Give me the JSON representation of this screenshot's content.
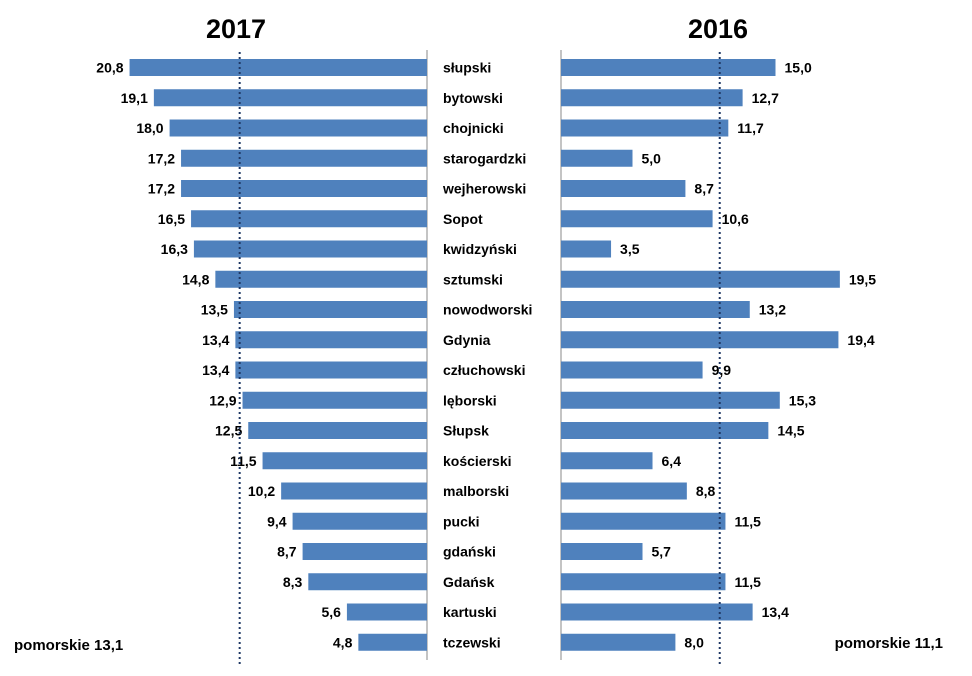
{
  "chart_data": {
    "type": "bar",
    "orientation": "horizontal-butterfly",
    "categories": [
      "słupski",
      "bytowski",
      "chojnicki",
      "starogardzki",
      "wejherowski",
      "Sopot",
      "kwidzyński",
      "sztumski",
      "nowodworski",
      "Gdynia",
      "człuchowski",
      "lęborski",
      "Słupsk",
      "kościerski",
      "malborski",
      "pucki",
      "gdański",
      "Gdańsk",
      "kartuski",
      "tczewski"
    ],
    "series": [
      {
        "name": "2017",
        "values": [
          "20,8",
          "19,1",
          "18,0",
          "17,2",
          "17,2",
          "16,5",
          "16,3",
          "14,8",
          "13,5",
          "13,4",
          "13,4",
          "12,9",
          "12,5",
          "11,5",
          "10,2",
          "9,4",
          "8,7",
          "8,3",
          "5,6",
          "4,8"
        ],
        "reference_value": 13.1,
        "reference_label": "pomorskie 13,1"
      },
      {
        "name": "2016",
        "values": [
          "15,0",
          "12,7",
          "11,7",
          "5,0",
          "8,7",
          "10,6",
          "3,5",
          "19,5",
          "13,2",
          "19,4",
          "9,9",
          "15,3",
          "14,5",
          "6,4",
          "8,8",
          "11,5",
          "5,7",
          "11,5",
          "13,4",
          "8,0"
        ],
        "reference_value": 11.1,
        "reference_label": "pomorskie 11,1"
      }
    ],
    "xlim": [
      0,
      20
    ],
    "bar_color": "#4f81bd",
    "reference_line_color": "#1f3864",
    "grid": false,
    "legend": "none"
  }
}
